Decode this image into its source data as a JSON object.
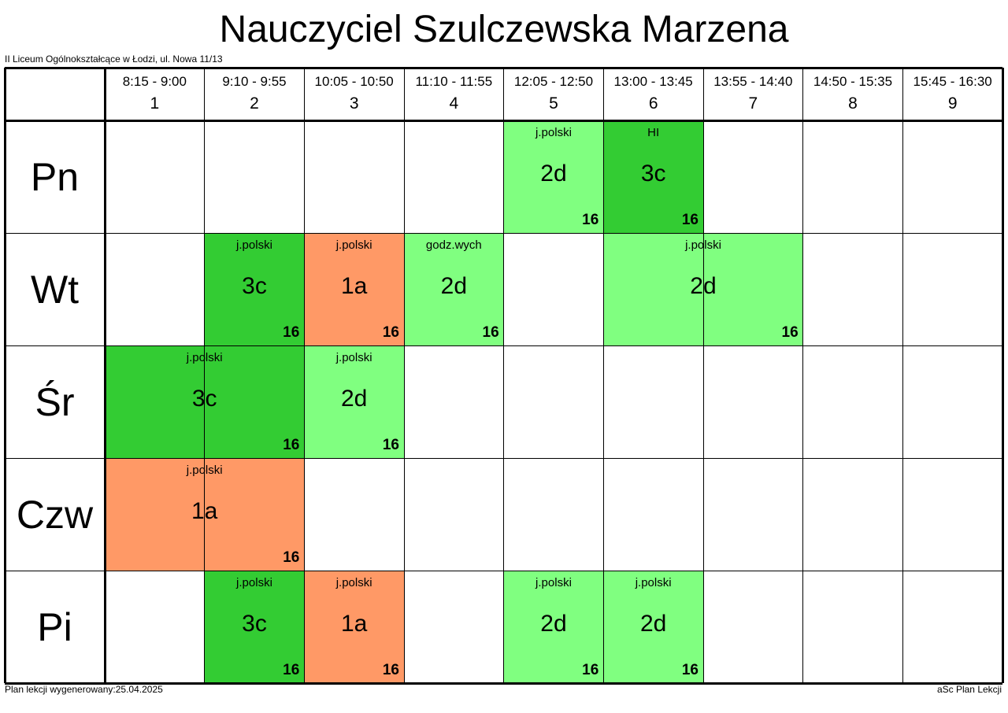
{
  "header": {
    "title": "Nauczyciel Szulczewska Marzena",
    "school": "II Liceum Ogólnokształcące w Łodzi, ul. Nowa 11/13"
  },
  "footer": {
    "generated": "Plan lekcji wygenerowany:25.04.2025",
    "app": "aSc Plan Lekcji"
  },
  "colors": {
    "light_green": "#80FF80",
    "dark_green": "#33CC33",
    "orange": "#FF9966"
  },
  "periods": [
    {
      "time": "8:15 - 9:00",
      "num": "1"
    },
    {
      "time": "9:10 - 9:55",
      "num": "2"
    },
    {
      "time": "10:05 - 10:50",
      "num": "3"
    },
    {
      "time": "11:10 - 11:55",
      "num": "4"
    },
    {
      "time": "12:05 - 12:50",
      "num": "5"
    },
    {
      "time": "13:00 - 13:45",
      "num": "6"
    },
    {
      "time": "13:55 - 14:40",
      "num": "7"
    },
    {
      "time": "14:50 - 15:35",
      "num": "8"
    },
    {
      "time": "15:45 - 16:30",
      "num": "9"
    }
  ],
  "days": [
    "Pn",
    "Wt",
    "Śr",
    "Czw",
    "Pi"
  ],
  "lessons": [
    {
      "day": 0,
      "start": 5,
      "span": 1,
      "subject": "j.polski",
      "class": "2d",
      "room": "16",
      "color": "light_green"
    },
    {
      "day": 0,
      "start": 6,
      "span": 1,
      "subject": "HI",
      "class": "3c",
      "room": "16",
      "color": "dark_green"
    },
    {
      "day": 1,
      "start": 2,
      "span": 1,
      "subject": "j.polski",
      "class": "3c",
      "room": "16",
      "color": "dark_green"
    },
    {
      "day": 1,
      "start": 3,
      "span": 1,
      "subject": "j.polski",
      "class": "1a",
      "room": "16",
      "color": "orange"
    },
    {
      "day": 1,
      "start": 4,
      "span": 1,
      "subject": "godz.wych",
      "class": "2d",
      "room": "16",
      "color": "light_green"
    },
    {
      "day": 1,
      "start": 6,
      "span": 2,
      "subject": "j.polski",
      "class": "2d",
      "room": "16",
      "color": "light_green"
    },
    {
      "day": 2,
      "start": 1,
      "span": 2,
      "subject": "j.polski",
      "class": "3c",
      "room": "16",
      "color": "dark_green"
    },
    {
      "day": 2,
      "start": 3,
      "span": 1,
      "subject": "j.polski",
      "class": "2d",
      "room": "16",
      "color": "light_green"
    },
    {
      "day": 3,
      "start": 1,
      "span": 2,
      "subject": "j.polski",
      "class": "1a",
      "room": "16",
      "color": "orange"
    },
    {
      "day": 4,
      "start": 2,
      "span": 1,
      "subject": "j.polski",
      "class": "3c",
      "room": "16",
      "color": "dark_green"
    },
    {
      "day": 4,
      "start": 3,
      "span": 1,
      "subject": "j.polski",
      "class": "1a",
      "room": "16",
      "color": "orange"
    },
    {
      "day": 4,
      "start": 5,
      "span": 1,
      "subject": "j.polski",
      "class": "2d",
      "room": "16",
      "color": "light_green"
    },
    {
      "day": 4,
      "start": 6,
      "span": 1,
      "subject": "j.polski",
      "class": "2d",
      "room": "16",
      "color": "light_green"
    }
  ]
}
